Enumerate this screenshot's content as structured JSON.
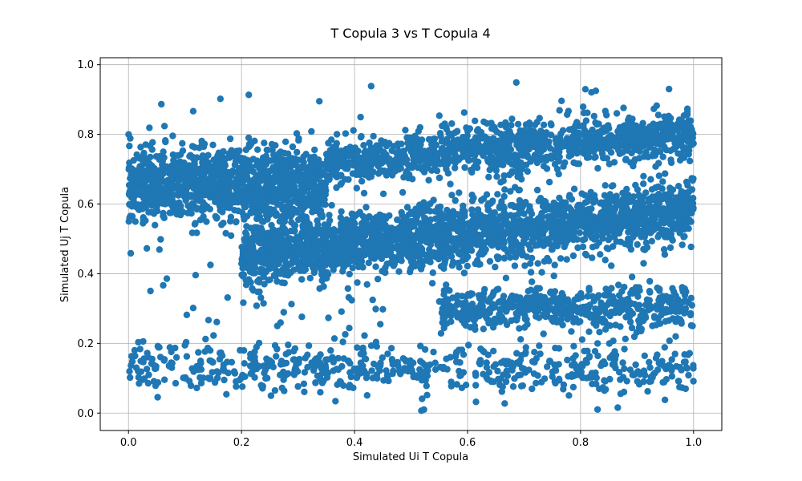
{
  "chart_data": {
    "type": "scatter",
    "title": "T Copula 3 vs T Copula 4",
    "xlabel": "Simulated Ui T Copula",
    "ylabel": "Simulated Uj T Copula",
    "xlim": [
      -0.05,
      1.05
    ],
    "ylim": [
      -0.05,
      1.02
    ],
    "xticks": [
      "0.0",
      "0.2",
      "0.4",
      "0.6",
      "0.8",
      "1.0"
    ],
    "yticks": [
      "0.0",
      "0.2",
      "0.4",
      "0.6",
      "0.8",
      "1.0"
    ],
    "grid": true,
    "legend": "none",
    "marker_color": "#1f77b4",
    "series": [
      {
        "clusters": [
          {
            "x": [
              0.0,
              0.35
            ],
            "y_center": 0.65,
            "spread": 0.1,
            "density": "high"
          },
          {
            "x": [
              0.2,
              1.0
            ],
            "y_center_start": 0.45,
            "y_center_end": 0.58,
            "spread": 0.08,
            "density": "very high"
          },
          {
            "x": [
              0.35,
              1.0
            ],
            "y_center_start": 0.72,
            "y_center_end": 0.8,
            "spread": 0.06,
            "density": "high"
          },
          {
            "x": [
              0.0,
              1.0
            ],
            "y_center": 0.13,
            "spread": 0.06,
            "density": "medium"
          },
          {
            "x": [
              0.55,
              1.0
            ],
            "y_center": 0.3,
            "spread": 0.05,
            "density": "medium"
          }
        ],
        "range_x": [
          0.0,
          1.0
        ],
        "range_y": [
          0.0,
          0.96
        ]
      }
    ]
  }
}
